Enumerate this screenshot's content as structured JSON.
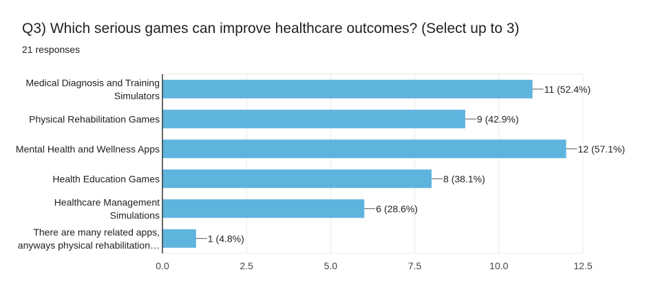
{
  "header": {
    "question": "Q3) Which serious games can improve healthcare outcomes?   (Select up to 3)",
    "responses": "21 responses"
  },
  "colors": {
    "bar": "#5fb4de",
    "grid": "#e8e8e8",
    "axis": "#333333",
    "text": "#202124"
  },
  "chart_data": {
    "type": "bar",
    "orientation": "horizontal",
    "categories": [
      [
        "Medical Diagnosis and Training",
        "Simulators"
      ],
      [
        "Physical Rehabilitation Games"
      ],
      [
        "Mental Health and Wellness Apps"
      ],
      [
        "Health Education Games"
      ],
      [
        "Healthcare Management",
        "Simulations"
      ],
      [
        "There are many related apps,",
        "anyways physical rehabilitation…"
      ]
    ],
    "values": [
      11,
      9,
      12,
      8,
      6,
      1
    ],
    "data_labels": [
      "11 (52.4%)",
      "9 (42.9%)",
      "12 (57.1%)",
      "8 (38.1%)",
      "6 (28.6%)",
      "1 (4.8%)"
    ],
    "xlim": [
      0,
      12.5
    ],
    "xticks": [
      "0.0",
      "2.5",
      "5.0",
      "7.5",
      "10.0",
      "12.5"
    ],
    "grid": true
  }
}
